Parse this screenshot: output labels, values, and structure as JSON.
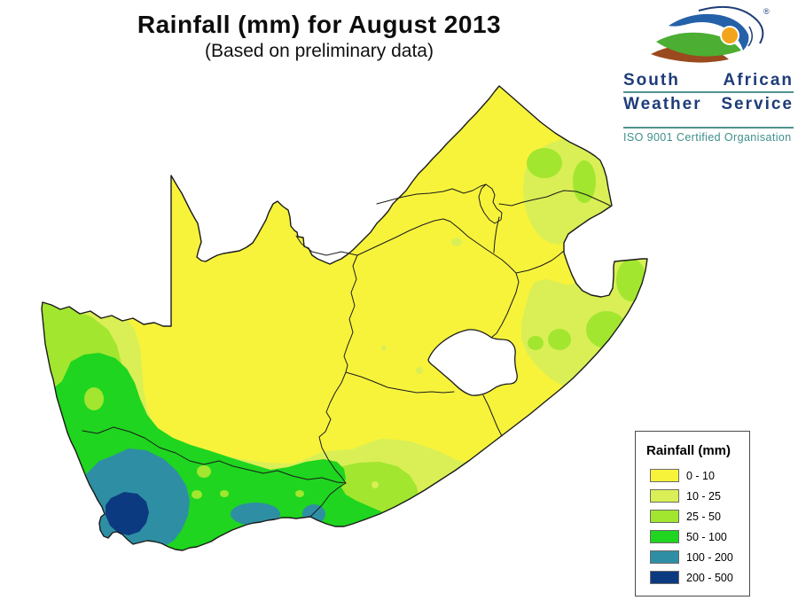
{
  "title": {
    "line1": "Rainfall (mm)  for  August 2013",
    "line2": "(Based on preliminary data)"
  },
  "logo": {
    "name1": "South African",
    "name2": "Weather Service",
    "word1a": "South",
    "word1b": "African",
    "word2a": "Weather",
    "word2b": "Service",
    "registered": "®",
    "tagline": "ISO 9001 Certified Organisation",
    "colors": {
      "text_navy": "#1E3C78",
      "rule_teal": "#50948E",
      "tagline_teal": "#3E8F8A",
      "swoosh_blue": "#2561A9",
      "swoosh_green": "#4CAE32",
      "swoosh_brown": "#9A4A1E",
      "sun_orange": "#F2A51C"
    }
  },
  "legend": {
    "title": "Rainfall (mm)",
    "items": [
      {
        "label": "0 - 10",
        "color": "#F7F33B"
      },
      {
        "label": "10 - 25",
        "color": "#D9EF55"
      },
      {
        "label": "25 - 50",
        "color": "#A2E62F"
      },
      {
        "label": "50 - 100",
        "color": "#1FD51F"
      },
      {
        "label": "100 - 200",
        "color": "#2E8FA4"
      },
      {
        "label": "200 - 500",
        "color": "#0C3A80"
      }
    ]
  },
  "map": {
    "region": "South Africa",
    "units": "mm",
    "excluded_areas": [
      "Lesotho",
      "Swaziland"
    ],
    "border_color": "#1b1b1b",
    "background_color": "#ffffff"
  }
}
